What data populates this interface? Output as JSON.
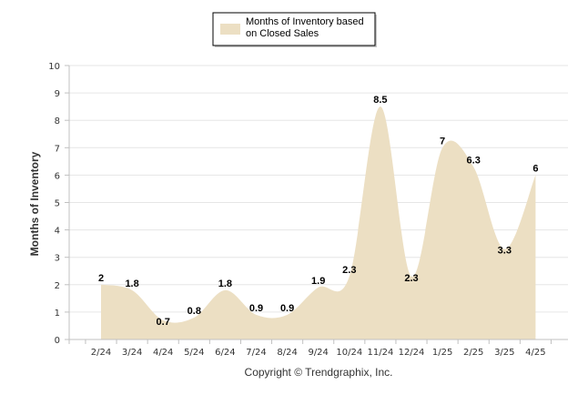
{
  "chart_data": {
    "type": "area",
    "title": "",
    "xlabel": "",
    "ylabel": "Months of Inventory",
    "categories": [
      "2/24",
      "3/24",
      "4/24",
      "5/24",
      "6/24",
      "7/24",
      "8/24",
      "9/24",
      "10/24",
      "11/24",
      "12/24",
      "1/25",
      "2/25",
      "3/25",
      "4/25"
    ],
    "series": [
      {
        "name": "Months of Inventory based on Closed Sales",
        "values": [
          2,
          1.8,
          0.7,
          0.8,
          1.8,
          0.9,
          0.9,
          1.9,
          2.3,
          8.5,
          2.3,
          7,
          6.3,
          3.3,
          6
        ],
        "labels": [
          "2",
          "1.8",
          "0.7",
          "0.8",
          "1.8",
          "0.9",
          "0.9",
          "1.9",
          "2.3",
          "8.5",
          "2.3",
          "7",
          "6.3",
          "3.3",
          "6"
        ],
        "color": "#ecdfc3"
      }
    ],
    "ylim": [
      0,
      10
    ],
    "yticks": [
      "0",
      "1",
      "2",
      "3",
      "4",
      "5",
      "6",
      "7",
      "8",
      "9",
      "10"
    ],
    "grid": true,
    "legend": {
      "position": "top-center",
      "lines": [
        "Months of Inventory based",
        "on Closed Sales"
      ]
    },
    "credit": "Copyright © Trendgraphix, Inc."
  }
}
